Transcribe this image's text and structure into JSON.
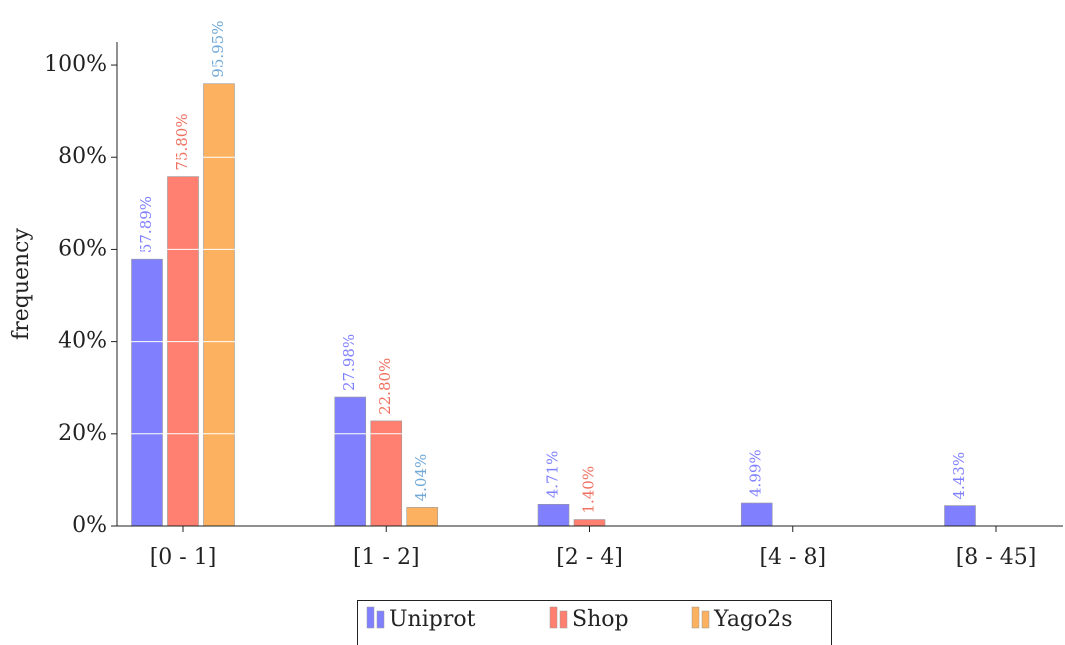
{
  "chart_data": {
    "type": "bar",
    "ylabel": "frequency",
    "categories": [
      "[0 - 1]",
      "[1 - 2]",
      "[2 - 4]",
      "[4 - 8]",
      "[8 - 45]"
    ],
    "series": [
      {
        "name": "Uniprot",
        "color": "#8080ff",
        "label_color": "#8080ff",
        "values": [
          57.89,
          27.98,
          4.71,
          4.99,
          4.43
        ],
        "value_labels": [
          "57.89%",
          "27.98%",
          "4.71%",
          "4.99%",
          "4.43%"
        ]
      },
      {
        "name": "Shop",
        "color": "#ff8070",
        "label_color": "#f07060",
        "values": [
          75.8,
          22.8,
          1.4,
          null,
          null
        ],
        "value_labels": [
          "75.80%",
          "22.80%",
          "1.40%",
          null,
          null
        ]
      },
      {
        "name": "Yago2s",
        "color": "#fbb160",
        "label_color": "#70a8d8",
        "values": [
          95.95,
          4.04,
          null,
          null,
          null
        ],
        "value_labels": [
          "95.95%",
          "4.04%",
          null,
          null,
          null
        ]
      }
    ],
    "ylim": [
      0,
      105
    ],
    "yticks": [
      {
        "value": 0,
        "label": "0%"
      },
      {
        "value": 20,
        "label": "20%"
      },
      {
        "value": 40,
        "label": "40%"
      },
      {
        "value": 60,
        "label": "60%"
      },
      {
        "value": 80,
        "label": "80%"
      },
      {
        "value": 100,
        "label": "100%"
      }
    ],
    "grid": true,
    "legend": "bottom"
  }
}
